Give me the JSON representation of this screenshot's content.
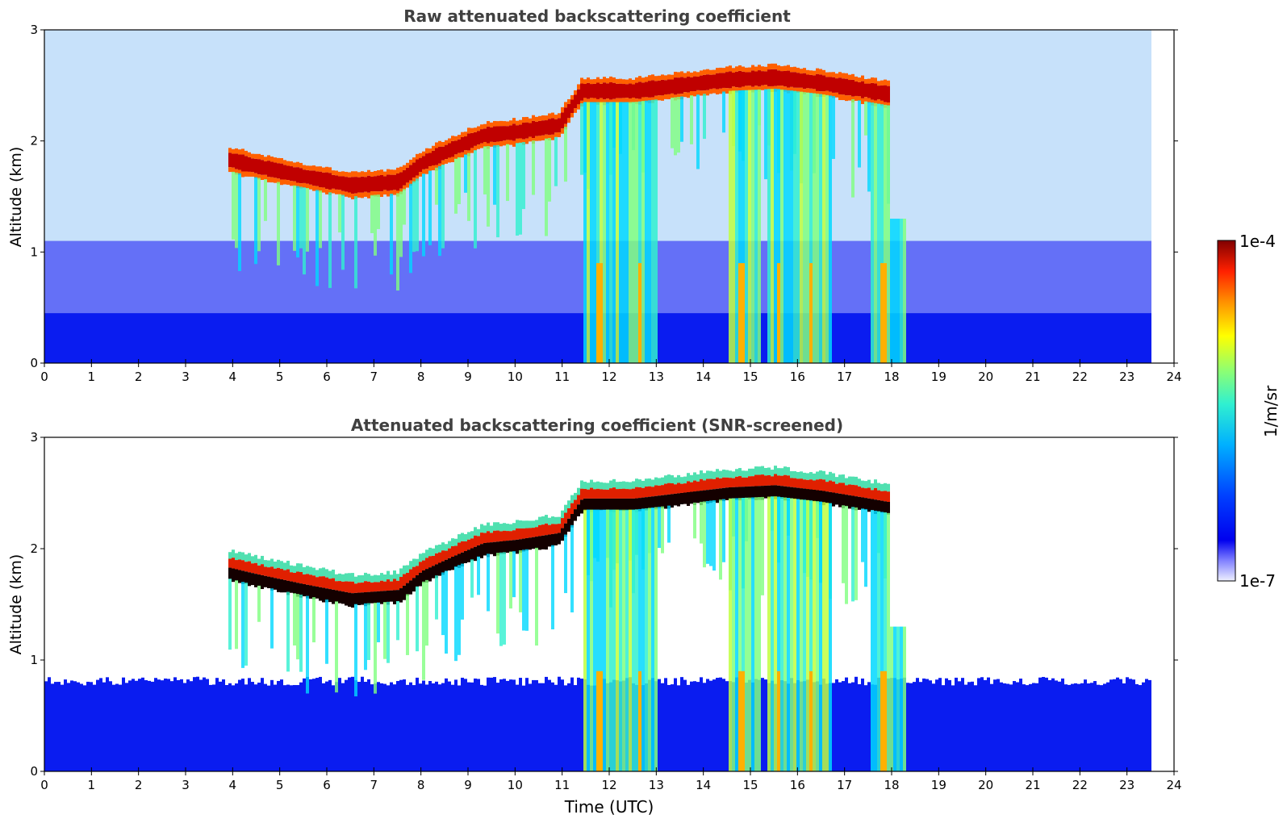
{
  "chart_data": [
    {
      "type": "heatmap",
      "title": "Raw attenuated backscattering coefficient",
      "xlabel": "",
      "ylabel": "Altitude (km)",
      "xlim": [
        0,
        24
      ],
      "ylim": [
        0,
        3
      ],
      "xticks": [
        "0",
        "1",
        "2",
        "3",
        "4",
        "5",
        "6",
        "7",
        "8",
        "9",
        "10",
        "11",
        "12",
        "13",
        "14",
        "15",
        "16",
        "17",
        "18",
        "19",
        "20",
        "21",
        "22",
        "23",
        "24"
      ],
      "yticks": [
        "0",
        "1",
        "2",
        "3"
      ],
      "screened": false,
      "data_end_hour": 23.5,
      "cloud_layer": [
        [
          3.9,
          1.83
        ],
        [
          4.5,
          1.77
        ],
        [
          5.5,
          1.68
        ],
        [
          6.5,
          1.6
        ],
        [
          7.5,
          1.63
        ],
        [
          8.0,
          1.8
        ],
        [
          8.6,
          1.92
        ],
        [
          9.3,
          2.05
        ],
        [
          10.0,
          2.08
        ],
        [
          10.9,
          2.14
        ],
        [
          11.4,
          2.45
        ],
        [
          12.5,
          2.45
        ],
        [
          13.5,
          2.5
        ],
        [
          14.5,
          2.55
        ],
        [
          15.5,
          2.57
        ],
        [
          16.5,
          2.52
        ],
        [
          17.5,
          2.45
        ],
        [
          17.9,
          2.42
        ]
      ],
      "precip_fallstreaks": [
        [
          11.4,
          12.4
        ],
        [
          12.4,
          13.0
        ],
        [
          14.5,
          15.2
        ],
        [
          15.3,
          16.0
        ],
        [
          16.0,
          16.7
        ],
        [
          17.5,
          18.3
        ]
      ],
      "colorbar": {
        "min": "1e-7",
        "max": "1e-4",
        "label": "1/m/sr",
        "scale": "log"
      }
    },
    {
      "type": "heatmap",
      "title": "Attenuated backscattering coefficient (SNR-screened)",
      "xlabel": "Time (UTC)",
      "ylabel": "Altitude (km)",
      "xlim": [
        0,
        24
      ],
      "ylim": [
        0,
        3
      ],
      "xticks": [
        "0",
        "1",
        "2",
        "3",
        "4",
        "5",
        "6",
        "7",
        "8",
        "9",
        "10",
        "11",
        "12",
        "13",
        "14",
        "15",
        "16",
        "17",
        "18",
        "19",
        "20",
        "21",
        "22",
        "23",
        "24"
      ],
      "yticks": [
        "0",
        "1",
        "2",
        "3"
      ],
      "screened": true,
      "data_end_hour": 23.5,
      "boundary_layer_top_km": 0.85,
      "cloud_layer": [
        [
          3.9,
          1.83
        ],
        [
          4.5,
          1.77
        ],
        [
          5.5,
          1.68
        ],
        [
          6.5,
          1.6
        ],
        [
          7.5,
          1.63
        ],
        [
          8.0,
          1.8
        ],
        [
          8.6,
          1.92
        ],
        [
          9.3,
          2.05
        ],
        [
          10.0,
          2.08
        ],
        [
          10.9,
          2.14
        ],
        [
          11.4,
          2.45
        ],
        [
          12.5,
          2.45
        ],
        [
          13.5,
          2.5
        ],
        [
          14.5,
          2.55
        ],
        [
          15.5,
          2.57
        ],
        [
          16.5,
          2.52
        ],
        [
          17.5,
          2.45
        ],
        [
          17.9,
          2.42
        ]
      ],
      "precip_fallstreaks": [
        [
          11.4,
          12.4
        ],
        [
          12.4,
          13.0
        ],
        [
          14.5,
          15.2
        ],
        [
          15.3,
          16.0
        ],
        [
          16.0,
          16.7
        ],
        [
          17.5,
          18.3
        ]
      ],
      "colorbar": {
        "min": "1e-7",
        "max": "1e-4",
        "label": "1/m/sr",
        "scale": "log"
      }
    }
  ],
  "colorbar": {
    "max_label": "1e-4",
    "min_label": "1e-7",
    "unit_label": "1/m/sr",
    "colors": [
      "#7f0000",
      "#c00000",
      "#ff2000",
      "#ff7000",
      "#ffc000",
      "#ffff00",
      "#a0ff50",
      "#40ffc0",
      "#00d0ff",
      "#0080ff",
      "#0020ff",
      "#0000e0",
      "#4040f0",
      "#a0a0ff",
      "#e8e8ff"
    ]
  }
}
